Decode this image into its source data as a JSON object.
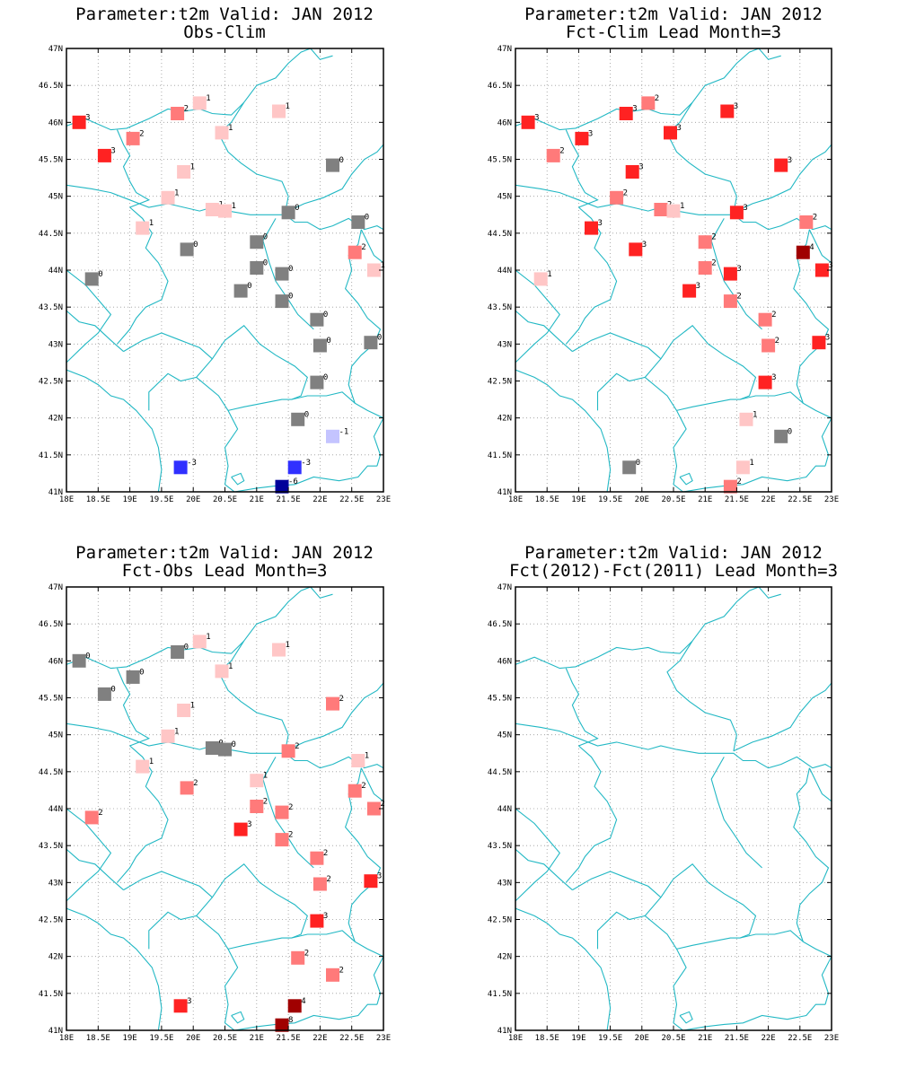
{
  "colors": {
    "coast": "#22b8c4",
    "grid": "#9a9a9a",
    "frame": "#000000",
    "neutral": "#808080",
    "pos1": "#ffc6c6",
    "pos2": "#ff7a7a",
    "pos3": "#ff2222",
    "pos4": "#a00000",
    "neg1": "#c4c4ff",
    "neg3": "#3030ff",
    "neg6": "#00009a"
  },
  "axes": {
    "lon_min": 18,
    "lon_max": 23,
    "lat_min": 41,
    "lat_max": 47,
    "lon_ticks": [
      "18E",
      "18.5E",
      "19E",
      "19.5E",
      "20E",
      "20.5E",
      "21E",
      "21.5E",
      "22E",
      "22.5E",
      "23E"
    ],
    "lat_ticks": [
      "41N",
      "41.5N",
      "42N",
      "42.5N",
      "43N",
      "43.5N",
      "44N",
      "44.5N",
      "45N",
      "45.5N",
      "46N",
      "46.5N",
      "47N"
    ]
  },
  "panels": [
    {
      "title1": "Parameter:t2m Valid: JAN 2012",
      "title2": "Obs-Clim",
      "points": [
        {
          "lon": 18.2,
          "lat": 46.0,
          "v": 3
        },
        {
          "lon": 18.6,
          "lat": 45.55,
          "v": 3
        },
        {
          "lon": 19.05,
          "lat": 45.78,
          "v": 2
        },
        {
          "lon": 19.75,
          "lat": 46.12,
          "v": 2
        },
        {
          "lon": 20.1,
          "lat": 46.26,
          "v": 1
        },
        {
          "lon": 21.35,
          "lat": 46.15,
          "v": 1
        },
        {
          "lon": 20.45,
          "lat": 45.86,
          "v": 1
        },
        {
          "lon": 19.85,
          "lat": 45.33,
          "v": 1
        },
        {
          "lon": 22.2,
          "lat": 45.42,
          "v": 0
        },
        {
          "lon": 19.6,
          "lat": 44.98,
          "v": 1
        },
        {
          "lon": 20.3,
          "lat": 44.82,
          "v": 1
        },
        {
          "lon": 20.5,
          "lat": 44.8,
          "v": 1
        },
        {
          "lon": 21.5,
          "lat": 44.78,
          "v": 0
        },
        {
          "lon": 22.6,
          "lat": 44.65,
          "v": 0
        },
        {
          "lon": 19.2,
          "lat": 44.57,
          "v": 1
        },
        {
          "lon": 21.0,
          "lat": 44.38,
          "v": 0
        },
        {
          "lon": 19.9,
          "lat": 44.28,
          "v": 0
        },
        {
          "lon": 22.55,
          "lat": 44.24,
          "v": 2
        },
        {
          "lon": 21.0,
          "lat": 44.03,
          "v": 0
        },
        {
          "lon": 22.85,
          "lat": 44.0,
          "v": 1
        },
        {
          "lon": 21.4,
          "lat": 43.95,
          "v": 0
        },
        {
          "lon": 18.4,
          "lat": 43.88,
          "v": 0
        },
        {
          "lon": 20.75,
          "lat": 43.72,
          "v": 0
        },
        {
          "lon": 21.4,
          "lat": 43.58,
          "v": 0
        },
        {
          "lon": 21.95,
          "lat": 43.33,
          "v": 0
        },
        {
          "lon": 22.0,
          "lat": 42.98,
          "v": 0
        },
        {
          "lon": 22.8,
          "lat": 43.02,
          "v": 0
        },
        {
          "lon": 21.95,
          "lat": 42.48,
          "v": 0
        },
        {
          "lon": 21.65,
          "lat": 41.98,
          "v": 0
        },
        {
          "lon": 22.2,
          "lat": 41.75,
          "v": -1
        },
        {
          "lon": 19.8,
          "lat": 41.33,
          "v": -3
        },
        {
          "lon": 21.6,
          "lat": 41.33,
          "v": -3
        },
        {
          "lon": 21.4,
          "lat": 41.07,
          "v": -6
        }
      ]
    },
    {
      "title1": "Parameter:t2m Valid: JAN 2012",
      "title2": "Fct-Clim Lead Month=3",
      "points": [
        {
          "lon": 18.2,
          "lat": 46.0,
          "v": 3
        },
        {
          "lon": 18.6,
          "lat": 45.55,
          "v": 2
        },
        {
          "lon": 19.05,
          "lat": 45.78,
          "v": 3
        },
        {
          "lon": 19.75,
          "lat": 46.12,
          "v": 3
        },
        {
          "lon": 20.1,
          "lat": 46.26,
          "v": 2
        },
        {
          "lon": 21.35,
          "lat": 46.15,
          "v": 3
        },
        {
          "lon": 20.45,
          "lat": 45.86,
          "v": 3
        },
        {
          "lon": 19.85,
          "lat": 45.33,
          "v": 3
        },
        {
          "lon": 22.2,
          "lat": 45.42,
          "v": 3
        },
        {
          "lon": 19.6,
          "lat": 44.98,
          "v": 2
        },
        {
          "lon": 20.3,
          "lat": 44.82,
          "v": 2
        },
        {
          "lon": 20.5,
          "lat": 44.8,
          "v": 1
        },
        {
          "lon": 21.5,
          "lat": 44.78,
          "v": 3
        },
        {
          "lon": 22.6,
          "lat": 44.65,
          "v": 2
        },
        {
          "lon": 19.2,
          "lat": 44.57,
          "v": 3
        },
        {
          "lon": 21.0,
          "lat": 44.38,
          "v": 2
        },
        {
          "lon": 19.9,
          "lat": 44.28,
          "v": 3
        },
        {
          "lon": 22.55,
          "lat": 44.24,
          "v": 4
        },
        {
          "lon": 21.0,
          "lat": 44.03,
          "v": 2
        },
        {
          "lon": 22.85,
          "lat": 44.0,
          "v": 3
        },
        {
          "lon": 21.4,
          "lat": 43.95,
          "v": 3
        },
        {
          "lon": 18.4,
          "lat": 43.88,
          "v": 1
        },
        {
          "lon": 20.75,
          "lat": 43.72,
          "v": 3
        },
        {
          "lon": 21.4,
          "lat": 43.58,
          "v": 2
        },
        {
          "lon": 21.95,
          "lat": 43.33,
          "v": 2
        },
        {
          "lon": 22.0,
          "lat": 42.98,
          "v": 2
        },
        {
          "lon": 22.8,
          "lat": 43.02,
          "v": 3
        },
        {
          "lon": 21.95,
          "lat": 42.48,
          "v": 3
        },
        {
          "lon": 21.65,
          "lat": 41.98,
          "v": 1
        },
        {
          "lon": 22.2,
          "lat": 41.75,
          "v": 0
        },
        {
          "lon": 19.8,
          "lat": 41.33,
          "v": 0
        },
        {
          "lon": 21.6,
          "lat": 41.33,
          "v": 1
        },
        {
          "lon": 21.4,
          "lat": 41.07,
          "v": 2
        }
      ]
    },
    {
      "title1": "Parameter:t2m Valid: JAN 2012",
      "title2": "Fct-Obs Lead Month=3",
      "points": [
        {
          "lon": 18.2,
          "lat": 46.0,
          "v": 0
        },
        {
          "lon": 18.6,
          "lat": 45.55,
          "v": 0
        },
        {
          "lon": 19.05,
          "lat": 45.78,
          "v": 0
        },
        {
          "lon": 19.75,
          "lat": 46.12,
          "v": 0
        },
        {
          "lon": 20.1,
          "lat": 46.26,
          "v": 1
        },
        {
          "lon": 21.35,
          "lat": 46.15,
          "v": 1
        },
        {
          "lon": 20.45,
          "lat": 45.86,
          "v": 1
        },
        {
          "lon": 19.85,
          "lat": 45.33,
          "v": 1
        },
        {
          "lon": 22.2,
          "lat": 45.42,
          "v": 2
        },
        {
          "lon": 19.6,
          "lat": 44.98,
          "v": 1
        },
        {
          "lon": 20.3,
          "lat": 44.82,
          "v": 0
        },
        {
          "lon": 20.5,
          "lat": 44.8,
          "v": 0
        },
        {
          "lon": 21.5,
          "lat": 44.78,
          "v": 2
        },
        {
          "lon": 22.6,
          "lat": 44.65,
          "v": 1
        },
        {
          "lon": 19.2,
          "lat": 44.57,
          "v": 1
        },
        {
          "lon": 21.0,
          "lat": 44.38,
          "v": 1
        },
        {
          "lon": 19.9,
          "lat": 44.28,
          "v": 2
        },
        {
          "lon": 22.55,
          "lat": 44.24,
          "v": 2
        },
        {
          "lon": 21.0,
          "lat": 44.03,
          "v": 2
        },
        {
          "lon": 22.85,
          "lat": 44.0,
          "v": 2
        },
        {
          "lon": 21.4,
          "lat": 43.95,
          "v": 2
        },
        {
          "lon": 18.4,
          "lat": 43.88,
          "v": 2
        },
        {
          "lon": 20.75,
          "lat": 43.72,
          "v": 3
        },
        {
          "lon": 21.4,
          "lat": 43.58,
          "v": 2
        },
        {
          "lon": 21.95,
          "lat": 43.33,
          "v": 2
        },
        {
          "lon": 22.0,
          "lat": 42.98,
          "v": 2
        },
        {
          "lon": 22.8,
          "lat": 43.02,
          "v": 3
        },
        {
          "lon": 21.95,
          "lat": 42.48,
          "v": 3
        },
        {
          "lon": 21.65,
          "lat": 41.98,
          "v": 2
        },
        {
          "lon": 22.2,
          "lat": 41.75,
          "v": 2
        },
        {
          "lon": 19.8,
          "lat": 41.33,
          "v": 3
        },
        {
          "lon": 21.6,
          "lat": 41.33,
          "v": 4
        },
        {
          "lon": 21.4,
          "lat": 41.07,
          "v": 8
        }
      ]
    },
    {
      "title1": "Parameter:t2m Valid: JAN 2012",
      "title2": "Fct(2012)-Fct(2011) Lead Month=3",
      "points": []
    }
  ]
}
